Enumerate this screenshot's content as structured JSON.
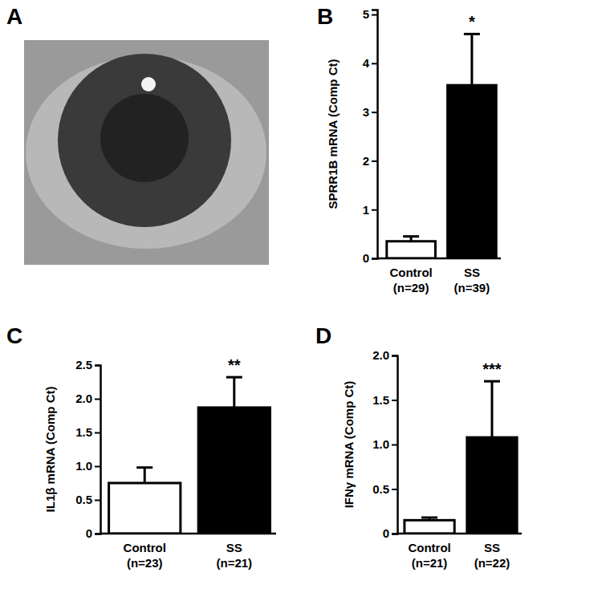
{
  "image_panel": {
    "label": "A"
  },
  "chart_data": [
    {
      "type": "bar",
      "title": "B",
      "y_label": "SPRR1B mRNA (Comp Ct)",
      "categories": [
        "Control\n(n=29)",
        "SS\n(n=39)"
      ],
      "values": [
        0.35,
        3.55
      ],
      "errors": [
        0.1,
        1.05
      ],
      "significance": [
        null,
        "*"
      ],
      "colors": [
        "#ffffff",
        "#000000"
      ],
      "ylim": [
        0,
        5.1
      ],
      "yticks": [
        0,
        1,
        2,
        3,
        4,
        5
      ]
    },
    {
      "type": "bar",
      "title": "C",
      "y_label": "IL1β mRNA (Comp Ct)",
      "categories": [
        "Control\n(n=23)",
        "SS\n(n=21)"
      ],
      "values": [
        0.75,
        1.87
      ],
      "errors": [
        0.23,
        0.45
      ],
      "significance": [
        null,
        "**"
      ],
      "colors": [
        "#ffffff",
        "#000000"
      ],
      "ylim": [
        0,
        2.5
      ],
      "yticks": [
        0,
        0.5,
        {
          "value": 1,
          "label": "1.0"
        },
        1.5,
        {
          "value": 2,
          "label": "2.0"
        },
        2.5
      ]
    },
    {
      "type": "bar",
      "title": "D",
      "y_label": "IFNγ mRNA (Comp Ct)",
      "categories": [
        "Control\n(n=21)",
        "SS\n(n=22)"
      ],
      "values": [
        0.15,
        1.08
      ],
      "errors": [
        0.03,
        0.63
      ],
      "significance": [
        null,
        "***"
      ],
      "colors": [
        "#ffffff",
        "#000000"
      ],
      "ylim": [
        0,
        2.0
      ],
      "yticks": [
        0,
        0.5,
        {
          "value": 1,
          "label": "1.0"
        },
        1.5,
        {
          "value": 2,
          "label": "2.0"
        }
      ]
    }
  ]
}
